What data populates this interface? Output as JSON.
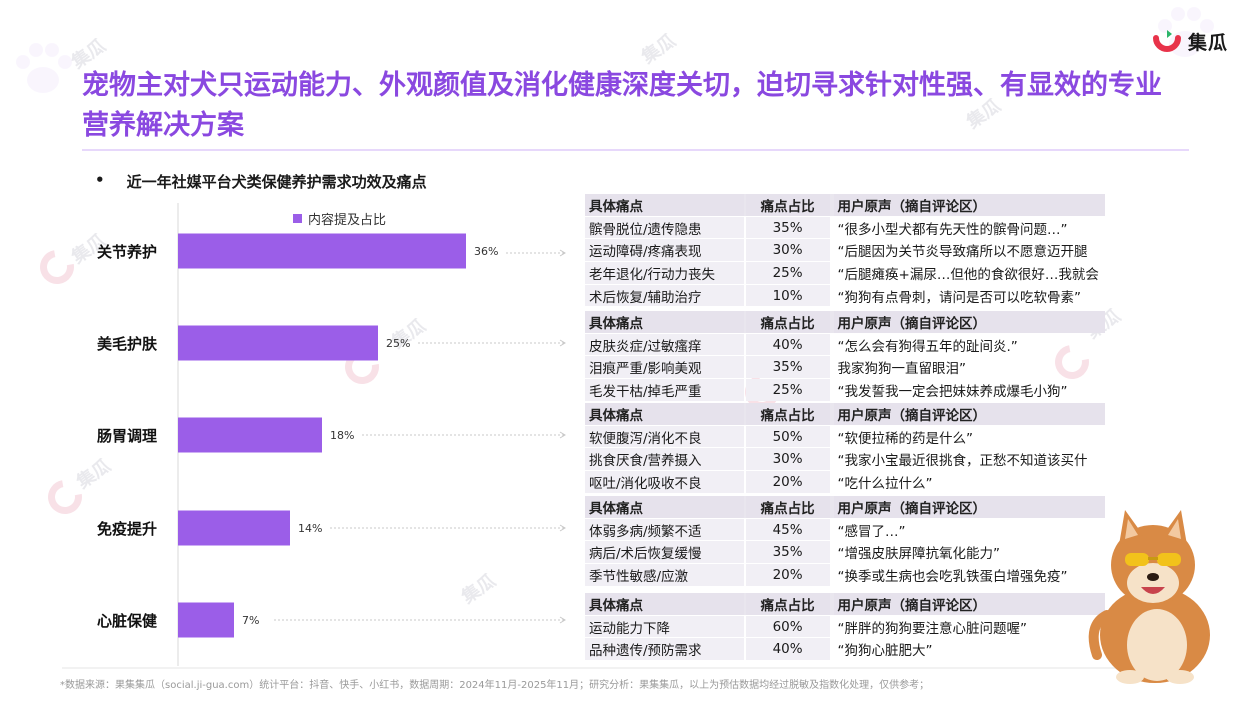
{
  "brand": {
    "name": "集瓜",
    "watermark": "集瓜"
  },
  "title": "宠物主对犬只运动能力、外观颜值及消化健康深度关切，迫切寻求针对性强、有显效的专业营养解决方案",
  "subtitle": {
    "bullet": "•",
    "text": "近一年社媒平台犬类保健养护需求功效及痛点"
  },
  "legend": {
    "label": "内容提及占比"
  },
  "colors": {
    "accent": "#8a48e0",
    "bar": "#9b5ee8"
  },
  "chart_data": {
    "type": "bar",
    "orientation": "horizontal",
    "categories": [
      "关节养护",
      "美毛护肤",
      "肠胃调理",
      "免疫提升",
      "心脏保健"
    ],
    "series": [
      {
        "name": "内容提及占比",
        "values": [
          36,
          25,
          18,
          14,
          7
        ],
        "labels": [
          "36%",
          "25%",
          "18%",
          "14%",
          "7%"
        ]
      }
    ],
    "xlim": [
      0,
      40
    ],
    "grid": false,
    "legend_position": "top"
  },
  "pain_tables": [
    {
      "header": [
        "具体痛点",
        "痛点占比",
        "用户原声（摘自评论区）"
      ],
      "rows": [
        [
          "髌骨脱位/遗传隐患",
          "35%",
          "“很多小型犬都有先天性的髌骨问题…”"
        ],
        [
          "运动障碍/疼痛表现",
          "30%",
          "“后腿因为关节炎导致痛所以不愿意迈开腿"
        ],
        [
          "老年退化/行动力丧失",
          "25%",
          "“后腿瘫痪+漏尿…但他的食欲很好…我就会"
        ],
        [
          "术后恢复/辅助治疗",
          "10%",
          "“狗狗有点骨刺，请问是否可以吃软骨素”"
        ]
      ]
    },
    {
      "header": [
        "具体痛点",
        "痛点占比",
        "用户原声（摘自评论区）"
      ],
      "rows": [
        [
          "皮肤炎症/过敏瘙痒",
          "40%",
          "“怎么会有狗得五年的趾间炎.”"
        ],
        [
          "泪痕严重/影响美观",
          "35%",
          "我家狗狗一直留眼泪”"
        ],
        [
          "毛发干枯/掉毛严重",
          "25%",
          "“我发誓我一定会把妹妹养成爆毛小狗”"
        ]
      ]
    },
    {
      "header": [
        "具体痛点",
        "痛点占比",
        "用户原声（摘自评论区）"
      ],
      "rows": [
        [
          "软便腹泻/消化不良",
          "50%",
          "“软便拉稀的药是什么”"
        ],
        [
          "挑食厌食/营养摄入",
          "30%",
          "“我家小宝最近很挑食，正愁不知道该买什"
        ],
        [
          "呕吐/消化吸收不良",
          "20%",
          "“吃什么拉什么”"
        ]
      ]
    },
    {
      "header": [
        "具体痛点",
        "痛点占比",
        "用户原声（摘自评论区）"
      ],
      "rows": [
        [
          "体弱多病/频繁不适",
          "45%",
          "“感冒了…”"
        ],
        [
          "病后/术后恢复缓慢",
          "35%",
          "“增强皮肤屏障抗氧化能力”"
        ],
        [
          "季节性敏感/应激",
          "20%",
          "“换季或生病也会吃乳铁蛋白增强免疫”"
        ]
      ]
    },
    {
      "header": [
        "具体痛点",
        "痛点占比",
        "用户原声（摘自评论区）"
      ],
      "rows": [
        [
          "运动能力下降",
          "60%",
          "“胖胖的狗狗要注意心脏问题喔”"
        ],
        [
          "品种遗传/预防需求",
          "40%",
          "“狗狗心脏肥大”"
        ]
      ]
    }
  ],
  "footnote": "*数据来源：果集集瓜（social.ji-gua.com）统计平台：抖音、快手、小红书，数据周期：2024年11月-2025年11月；研究分析：果集集瓜，以上为预估数据均经过脱敏及指数化处理，仅供参考；"
}
